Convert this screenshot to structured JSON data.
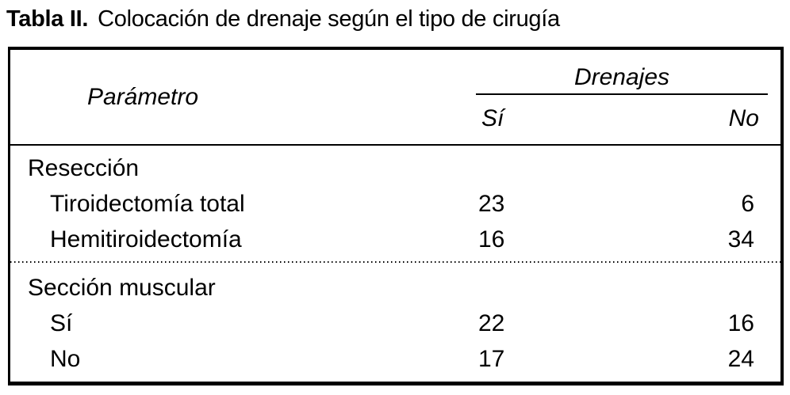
{
  "caption": {
    "label": "Tabla II.",
    "text": "Colocación de drenaje según el tipo de cirugía"
  },
  "table": {
    "header": {
      "parameter": "Parámetro",
      "group": "Drenajes",
      "columns": [
        "Sí",
        "No"
      ]
    },
    "sections": [
      {
        "title": "Resección",
        "rows": [
          {
            "label": "Tiroidectomía total",
            "si": "23",
            "no": "6"
          },
          {
            "label": "Hemitiroidectomía",
            "si": "16",
            "no": "34"
          }
        ]
      },
      {
        "title": "Sección muscular",
        "rows": [
          {
            "label": "Sí",
            "si": "22",
            "no": "16"
          },
          {
            "label": "No",
            "si": "17",
            "no": "24"
          }
        ]
      }
    ]
  },
  "chart_data": {
    "type": "table",
    "title": "Tabla II. Colocación de drenaje según el tipo de cirugía",
    "columns": [
      "Parámetro",
      "Drenajes Sí",
      "Drenajes No"
    ],
    "rows": [
      [
        "Resección",
        null,
        null
      ],
      [
        "Tiroidectomía total",
        23,
        6
      ],
      [
        "Hemitiroidectomía",
        16,
        34
      ],
      [
        "Sección muscular",
        null,
        null
      ],
      [
        "Sí",
        22,
        16
      ],
      [
        "No",
        17,
        24
      ]
    ]
  },
  "colors": {
    "text": "#000000",
    "background": "#ffffff",
    "border": "#000000"
  }
}
